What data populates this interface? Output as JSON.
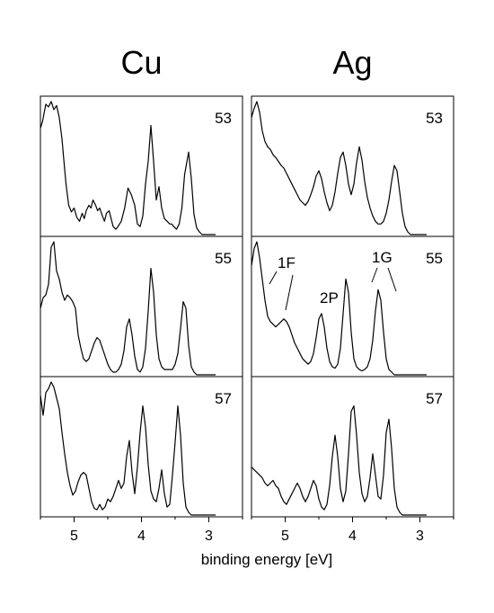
{
  "chart_data": {
    "type": "line",
    "xlabel": "binding energy [eV]",
    "x_reversed": true,
    "xlim": [
      5.5,
      2.5
    ],
    "xticks": [
      5,
      4,
      3
    ],
    "xtick_labels": [
      "5",
      "4",
      "3"
    ],
    "grid": false,
    "columns": [
      {
        "title": "Cu",
        "panels": [
          {
            "label": "53",
            "series": {
              "x": [
                5.5,
                5.47,
                5.42,
                5.38,
                5.34,
                5.3,
                5.26,
                5.22,
                5.18,
                5.15,
                5.12,
                5.08,
                5.04,
                5.0,
                4.96,
                4.92,
                4.88,
                4.85,
                4.82,
                4.78,
                4.75,
                4.72,
                4.68,
                4.65,
                4.62,
                4.58,
                4.55,
                4.52,
                4.48,
                4.45,
                4.42,
                4.38,
                4.35,
                4.3,
                4.25,
                4.2,
                4.15,
                4.1,
                4.06,
                4.02,
                3.98,
                3.94,
                3.9,
                3.86,
                3.82,
                3.78,
                3.74,
                3.7,
                3.66,
                3.62,
                3.58,
                3.55,
                3.52,
                3.48,
                3.44,
                3.4,
                3.36,
                3.3,
                3.26,
                3.22,
                3.18,
                3.14,
                3.1,
                3.06,
                3.02,
                2.98,
                2.94,
                2.9
              ],
              "y": [
                0.8,
                0.85,
                0.98,
                0.96,
                1.0,
                0.94,
                0.97,
                0.88,
                0.72,
                0.55,
                0.38,
                0.22,
                0.17,
                0.2,
                0.13,
                0.1,
                0.16,
                0.12,
                0.18,
                0.22,
                0.2,
                0.26,
                0.22,
                0.18,
                0.2,
                0.14,
                0.1,
                0.16,
                0.18,
                0.12,
                0.06,
                0.04,
                0.06,
                0.1,
                0.2,
                0.35,
                0.3,
                0.22,
                0.08,
                0.06,
                0.14,
                0.38,
                0.55,
                0.82,
                0.55,
                0.26,
                0.36,
                0.2,
                0.12,
                0.1,
                0.08,
                0.08,
                0.06,
                0.04,
                0.08,
                0.2,
                0.45,
                0.62,
                0.42,
                0.15,
                0.05,
                0.02,
                0.0,
                0.0,
                0.0,
                0.0,
                0.0,
                0.0
              ]
            }
          },
          {
            "label": "55",
            "series": {
              "x": [
                5.5,
                5.46,
                5.42,
                5.38,
                5.34,
                5.3,
                5.26,
                5.22,
                5.18,
                5.14,
                5.1,
                5.06,
                5.02,
                4.98,
                4.94,
                4.9,
                4.86,
                4.82,
                4.78,
                4.74,
                4.7,
                4.66,
                4.62,
                4.58,
                4.54,
                4.5,
                4.46,
                4.42,
                4.38,
                4.34,
                4.3,
                4.26,
                4.22,
                4.18,
                4.14,
                4.1,
                4.06,
                4.02,
                3.98,
                3.94,
                3.9,
                3.86,
                3.82,
                3.78,
                3.74,
                3.7,
                3.66,
                3.62,
                3.58,
                3.54,
                3.5,
                3.46,
                3.42,
                3.38,
                3.34,
                3.3,
                3.26,
                3.22,
                3.18,
                3.14,
                3.1,
                3.06,
                3.02,
                2.98,
                2.94,
                2.9
              ],
              "y": [
                0.5,
                0.58,
                0.6,
                0.68,
                0.96,
                1.0,
                0.78,
                0.72,
                0.62,
                0.56,
                0.6,
                0.58,
                0.55,
                0.5,
                0.3,
                0.2,
                0.12,
                0.1,
                0.12,
                0.18,
                0.24,
                0.28,
                0.26,
                0.2,
                0.14,
                0.08,
                0.04,
                0.02,
                0.02,
                0.04,
                0.08,
                0.18,
                0.36,
                0.42,
                0.3,
                0.14,
                0.04,
                0.02,
                0.06,
                0.2,
                0.48,
                0.8,
                0.62,
                0.3,
                0.12,
                0.06,
                0.04,
                0.04,
                0.04,
                0.04,
                0.08,
                0.16,
                0.35,
                0.55,
                0.5,
                0.22,
                0.06,
                0.02,
                0.0,
                0.0,
                0.0,
                0.0,
                0.0,
                0.0,
                0.0,
                0.0
              ]
            }
          },
          {
            "label": "57",
            "series": {
              "x": [
                5.5,
                5.46,
                5.42,
                5.38,
                5.34,
                5.3,
                5.26,
                5.22,
                5.18,
                5.14,
                5.1,
                5.06,
                5.02,
                4.98,
                4.94,
                4.9,
                4.86,
                4.82,
                4.78,
                4.74,
                4.7,
                4.66,
                4.62,
                4.58,
                4.54,
                4.5,
                4.46,
                4.42,
                4.38,
                4.34,
                4.3,
                4.26,
                4.22,
                4.18,
                4.14,
                4.1,
                4.06,
                4.02,
                3.98,
                3.94,
                3.9,
                3.86,
                3.82,
                3.78,
                3.74,
                3.7,
                3.66,
                3.62,
                3.58,
                3.54,
                3.5,
                3.46,
                3.42,
                3.38,
                3.34,
                3.3,
                3.26,
                3.22,
                3.18,
                3.14,
                3.1,
                3.06,
                3.02,
                2.98,
                2.94,
                2.9
              ],
              "y": [
                0.9,
                0.75,
                0.92,
                0.95,
                1.0,
                0.96,
                0.88,
                0.8,
                0.62,
                0.46,
                0.32,
                0.22,
                0.15,
                0.18,
                0.25,
                0.3,
                0.32,
                0.3,
                0.2,
                0.1,
                0.05,
                0.04,
                0.08,
                0.04,
                0.06,
                0.12,
                0.1,
                0.14,
                0.2,
                0.26,
                0.2,
                0.24,
                0.44,
                0.56,
                0.32,
                0.16,
                0.36,
                0.62,
                0.82,
                0.66,
                0.38,
                0.18,
                0.12,
                0.1,
                0.2,
                0.34,
                0.16,
                0.06,
                0.08,
                0.3,
                0.55,
                0.82,
                0.6,
                0.24,
                0.06,
                0.02,
                0.0,
                0.0,
                0.0,
                0.0,
                0.0,
                0.0,
                0.0,
                0.0,
                0.0,
                0.0
              ]
            }
          }
        ]
      },
      {
        "title": "Ag",
        "panels": [
          {
            "label": "53",
            "series": {
              "x": [
                5.5,
                5.46,
                5.42,
                5.38,
                5.34,
                5.3,
                5.26,
                5.22,
                5.18,
                5.14,
                5.1,
                5.06,
                5.02,
                4.98,
                4.94,
                4.9,
                4.86,
                4.82,
                4.78,
                4.74,
                4.7,
                4.66,
                4.62,
                4.58,
                4.54,
                4.5,
                4.46,
                4.42,
                4.38,
                4.34,
                4.3,
                4.26,
                4.22,
                4.18,
                4.14,
                4.1,
                4.06,
                4.02,
                3.98,
                3.94,
                3.9,
                3.86,
                3.82,
                3.78,
                3.74,
                3.7,
                3.66,
                3.62,
                3.58,
                3.54,
                3.5,
                3.46,
                3.42,
                3.38,
                3.34,
                3.3,
                3.26,
                3.22,
                3.18,
                3.14,
                3.1,
                3.06,
                3.02,
                2.98,
                2.94,
                2.9
              ],
              "y": [
                0.88,
                0.95,
                1.0,
                0.92,
                0.78,
                0.7,
                0.66,
                0.64,
                0.6,
                0.58,
                0.55,
                0.52,
                0.5,
                0.46,
                0.42,
                0.38,
                0.34,
                0.3,
                0.26,
                0.24,
                0.22,
                0.25,
                0.3,
                0.36,
                0.44,
                0.48,
                0.42,
                0.32,
                0.24,
                0.18,
                0.22,
                0.32,
                0.46,
                0.58,
                0.62,
                0.52,
                0.38,
                0.3,
                0.38,
                0.54,
                0.66,
                0.56,
                0.4,
                0.28,
                0.2,
                0.14,
                0.1,
                0.08,
                0.08,
                0.1,
                0.16,
                0.26,
                0.4,
                0.52,
                0.48,
                0.32,
                0.16,
                0.06,
                0.02,
                0.0,
                0.0,
                0.0,
                0.0,
                0.0,
                0.0,
                0.0
              ]
            }
          },
          {
            "label": "55",
            "series": {
              "x": [
                5.5,
                5.46,
                5.42,
                5.38,
                5.34,
                5.3,
                5.26,
                5.22,
                5.18,
                5.14,
                5.1,
                5.06,
                5.02,
                4.98,
                4.94,
                4.9,
                4.86,
                4.82,
                4.78,
                4.74,
                4.7,
                4.66,
                4.62,
                4.58,
                4.54,
                4.5,
                4.46,
                4.42,
                4.38,
                4.34,
                4.3,
                4.26,
                4.22,
                4.18,
                4.14,
                4.1,
                4.06,
                4.02,
                3.98,
                3.94,
                3.9,
                3.86,
                3.82,
                3.78,
                3.74,
                3.7,
                3.66,
                3.62,
                3.58,
                3.54,
                3.5,
                3.46,
                3.42,
                3.38,
                3.34,
                3.3,
                3.26,
                3.22,
                3.18,
                3.14,
                3.1,
                3.06,
                3.02,
                2.98,
                2.94,
                2.9
              ],
              "y": [
                0.82,
                0.95,
                1.0,
                0.88,
                0.72,
                0.56,
                0.44,
                0.4,
                0.38,
                0.36,
                0.38,
                0.4,
                0.42,
                0.4,
                0.36,
                0.3,
                0.24,
                0.2,
                0.16,
                0.12,
                0.1,
                0.08,
                0.1,
                0.16,
                0.28,
                0.42,
                0.46,
                0.36,
                0.2,
                0.1,
                0.06,
                0.05,
                0.08,
                0.2,
                0.46,
                0.72,
                0.62,
                0.32,
                0.12,
                0.06,
                0.04,
                0.03,
                0.04,
                0.06,
                0.12,
                0.26,
                0.48,
                0.64,
                0.56,
                0.32,
                0.12,
                0.04,
                0.02,
                0.0,
                0.0,
                0.0,
                0.0,
                0.0,
                0.0,
                0.0,
                0.0,
                0.0,
                0.0,
                0.0,
                0.0,
                0.0
              ]
            }
          },
          {
            "label": "57",
            "series": {
              "x": [
                5.5,
                5.46,
                5.42,
                5.38,
                5.34,
                5.3,
                5.26,
                5.22,
                5.18,
                5.14,
                5.1,
                5.06,
                5.02,
                4.98,
                4.94,
                4.9,
                4.86,
                4.82,
                4.78,
                4.74,
                4.7,
                4.66,
                4.62,
                4.58,
                4.54,
                4.5,
                4.46,
                4.42,
                4.38,
                4.34,
                4.3,
                4.26,
                4.22,
                4.18,
                4.14,
                4.1,
                4.06,
                4.02,
                3.98,
                3.94,
                3.9,
                3.86,
                3.82,
                3.78,
                3.74,
                3.7,
                3.66,
                3.62,
                3.58,
                3.54,
                3.5,
                3.46,
                3.42,
                3.38,
                3.34,
                3.3,
                3.26,
                3.22,
                3.18,
                3.14,
                3.1,
                3.06,
                3.02,
                2.98,
                2.94,
                2.9
              ],
              "y": [
                0.36,
                0.34,
                0.32,
                0.3,
                0.28,
                0.24,
                0.22,
                0.24,
                0.26,
                0.22,
                0.2,
                0.14,
                0.1,
                0.08,
                0.12,
                0.16,
                0.2,
                0.24,
                0.2,
                0.14,
                0.1,
                0.14,
                0.2,
                0.26,
                0.22,
                0.12,
                0.06,
                0.04,
                0.08,
                0.22,
                0.44,
                0.6,
                0.44,
                0.2,
                0.1,
                0.18,
                0.46,
                0.78,
                0.82,
                0.6,
                0.32,
                0.16,
                0.1,
                0.14,
                0.28,
                0.46,
                0.3,
                0.14,
                0.12,
                0.3,
                0.62,
                0.72,
                0.5,
                0.2,
                0.06,
                0.02,
                0.0,
                0.0,
                0.0,
                0.0,
                0.0,
                0.0,
                0.0,
                0.0,
                0.0,
                0.0
              ]
            }
          }
        ]
      }
    ],
    "annotations": [
      {
        "text": "1F",
        "x": 4.9,
        "y": 0.52
      },
      {
        "text": "2P",
        "x": 4.3,
        "y": 0.66
      },
      {
        "text": "1G",
        "x": 3.62,
        "y": 0.94
      }
    ]
  }
}
